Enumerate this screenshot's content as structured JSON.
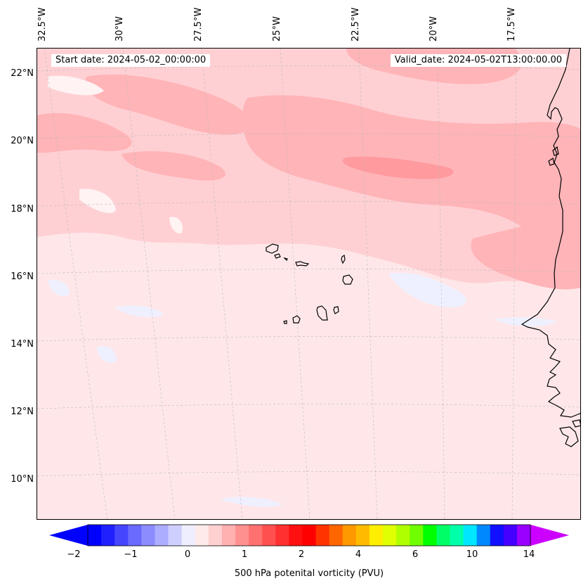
{
  "map": {
    "start_date_text": "Start date: 2024-05-02_00:00:00",
    "valid_date_text": "Valid_date: 2024-05-02T13:00:00.00",
    "lon_labels": [
      "32.5°W",
      "30°W",
      "27.5°W",
      "25°W",
      "22.5°W",
      "20°W",
      "17.5°W"
    ],
    "lat_labels": [
      "22°N",
      "20°N",
      "18°N",
      "16°N",
      "14°N",
      "12°N",
      "10°N"
    ],
    "colors": {
      "background_fill": "#ffe7e9",
      "level_light": "#ffd0d3",
      "level_mid": "#ffb4b8",
      "level_strong": "#ff9a9e",
      "negative_patch": "#eef0ff",
      "coast": "#000000",
      "grid": "#b9b9b9"
    }
  },
  "colorbar": {
    "label": "500 hPa potenital vorticity (PVU)",
    "tick_labels": [
      "−2",
      "−1",
      "0",
      "1",
      "2",
      "4",
      "6",
      "10",
      "14"
    ],
    "colors": [
      "#0000ff",
      "#2020ff",
      "#4646ff",
      "#6a6aff",
      "#8c8cff",
      "#adadff",
      "#cfcfff",
      "#eeeeff",
      "#ffeaea",
      "#ffd0d0",
      "#ffb0b0",
      "#ff9090",
      "#ff7070",
      "#ff5050",
      "#ff3030",
      "#ff1010",
      "#ff0000",
      "#ff3300",
      "#ff6600",
      "#ff9900",
      "#ffbb00",
      "#ffee00",
      "#e0ff00",
      "#b0ff00",
      "#70ff00",
      "#00ff00",
      "#00ff66",
      "#00ffaa",
      "#00e6ff",
      "#0088ff",
      "#1010ff",
      "#4400ff",
      "#9900ff"
    ],
    "extend_left_color": "#0000ff",
    "extend_right_color": "#cc00ff"
  }
}
